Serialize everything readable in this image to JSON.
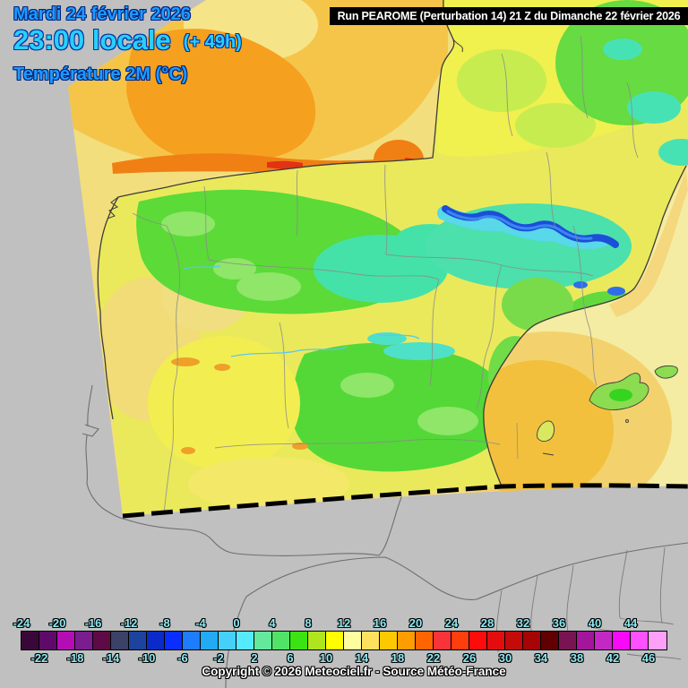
{
  "header": {
    "date": "Mardi 24 février 2026",
    "time": "23:00 locale",
    "offset": "(+ 49h)",
    "parameter": "Température 2M (°C)",
    "date_color": "#1E9BFF",
    "time_color": "#29CFFF"
  },
  "run_banner": {
    "text": "Run PEAROME (Perturbation 14) 21 Z du Dimanche 22 février 2026",
    "bg": "#000000",
    "fg": "#FFFFFF"
  },
  "colorbar": {
    "unit": "°C",
    "start": -24,
    "end": 48,
    "step": 2,
    "label_color": "#8FE9F2",
    "cell_colors": [
      "#3A0838",
      "#5E0A68",
      "#B50DB5",
      "#7A1E8F",
      "#5E0A46",
      "#3C4168",
      "#1C449E",
      "#0B2BC8",
      "#0A2EFF",
      "#1E7CFF",
      "#22AAF5",
      "#45D0FA",
      "#55EAFF",
      "#63E89C",
      "#4FE468",
      "#3CE312",
      "#AEE51C",
      "#FEFE00",
      "#FEFE9E",
      "#FEE25E",
      "#FEC800",
      "#FE9C00",
      "#FE6400",
      "#F8333A",
      "#FE3E0C",
      "#FE0C0C",
      "#E30D0D",
      "#C40A0A",
      "#A60505",
      "#600000",
      "#781452",
      "#A3159B",
      "#C428C4",
      "#F80AF8",
      "#FE50FE",
      "#FEA0F8"
    ],
    "top_labels": [
      "-24",
      "-20",
      "-16",
      "-12",
      "-8",
      "-4",
      "0",
      "4",
      "8",
      "12",
      "16",
      "20",
      "24",
      "28",
      "32",
      "36",
      "40",
      "44"
    ],
    "bottom_labels": [
      "-22",
      "-18",
      "-14",
      "-10",
      "-6",
      "-2",
      "2",
      "6",
      "10",
      "14",
      "18",
      "22",
      "26",
      "30",
      "34",
      "38",
      "42",
      "46"
    ]
  },
  "copyright": {
    "text": "Copyright © 2026 Meteociel.fr - Source Météo-France"
  },
  "map": {
    "background": "#C0C0C0",
    "sea_in_domain": "#F2DE7C",
    "warm_sea_biscay": "#F5A01E",
    "warm_sea_mediterranean": "#F2C03C",
    "land_base": "#EAE95C",
    "mild_land_green": "#5BDA38",
    "cool_land_cyan": "#44E2A8",
    "cold_mountains_blue": "#1C4ED8",
    "out_of_domain": "#C0C0C0"
  }
}
